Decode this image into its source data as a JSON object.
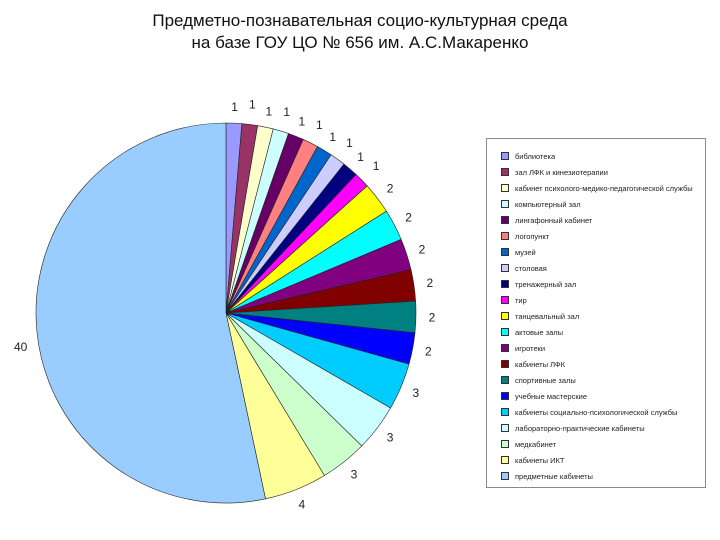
{
  "title_line1": "Предметно-познавательная социо-культурная среда",
  "title_line2": "на базе ГОУ ЦО № 656 им. А.С.Макаренко",
  "chart_data": {
    "type": "pie",
    "title": "Предметно-познавательная социо-культурная среда на базе ГОУ ЦО № 656 им. А.С.Макаренко",
    "legend_position": "right",
    "slices": [
      {
        "name": "библиотека",
        "value": 1,
        "color": "#9999ff"
      },
      {
        "name": "зал ЛФК и кинезиотерапии",
        "value": 1,
        "color": "#993366"
      },
      {
        "name": "кабинет психолого-медико-педагогической службы",
        "value": 1,
        "color": "#ffffcc"
      },
      {
        "name": "компьютерный зал",
        "value": 1,
        "color": "#ccffff"
      },
      {
        "name": "лингафонный кабинет",
        "value": 1,
        "color": "#660066"
      },
      {
        "name": "логопункт",
        "value": 1,
        "color": "#ff8080"
      },
      {
        "name": "музей",
        "value": 1,
        "color": "#0066cc"
      },
      {
        "name": "столовая",
        "value": 1,
        "color": "#ccccff"
      },
      {
        "name": "тренажерный зал",
        "value": 1,
        "color": "#000080"
      },
      {
        "name": "тир",
        "value": 1,
        "color": "#ff00ff"
      },
      {
        "name": "танцевальный зал",
        "value": 2,
        "color": "#ffff00"
      },
      {
        "name": "актовые залы",
        "value": 2,
        "color": "#00ffff"
      },
      {
        "name": "игротеки",
        "value": 2,
        "color": "#800080"
      },
      {
        "name": "кабинеты ЛФК",
        "value": 2,
        "color": "#800000"
      },
      {
        "name": "спортивные залы",
        "value": 2,
        "color": "#008080"
      },
      {
        "name": "учебные мастерские",
        "value": 2,
        "color": "#0000ff"
      },
      {
        "name": "кабинеты социально-психологической службы",
        "value": 3,
        "color": "#00ccff"
      },
      {
        "name": "лабораторно-практические кабинеты",
        "value": 3,
        "color": "#ccffff"
      },
      {
        "name": "медкабинет",
        "value": 3,
        "color": "#ccffcc"
      },
      {
        "name": "кабинеты ИКТ",
        "value": 4,
        "color": "#ffff99"
      },
      {
        "name": "предметные кабинеты",
        "value": 40,
        "color": "#99ccff"
      }
    ]
  }
}
